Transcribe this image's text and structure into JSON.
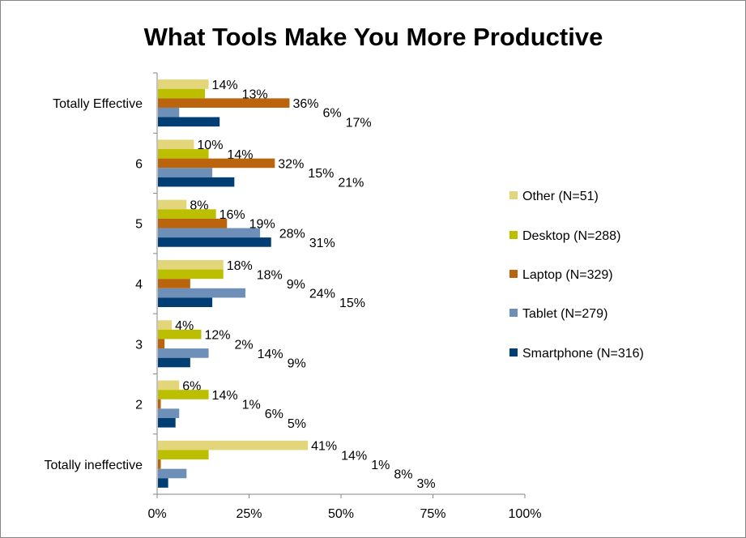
{
  "chart_data": {
    "type": "bar",
    "orientation": "horizontal",
    "title": "What Tools Make You More Productive",
    "categories": [
      "Totally Effective",
      "6",
      "5",
      "4",
      "3",
      "2",
      "Totally ineffective"
    ],
    "series": [
      {
        "name": "Other (N=51)",
        "color": "#E2D57A",
        "values": [
          14,
          10,
          8,
          18,
          4,
          6,
          41
        ]
      },
      {
        "name": "Desktop (N=288)",
        "color": "#BBBF00",
        "values": [
          13,
          14,
          16,
          18,
          12,
          14,
          14
        ]
      },
      {
        "name": "Laptop (N=329)",
        "color": "#BB640E",
        "values": [
          36,
          32,
          19,
          9,
          2,
          1,
          1
        ]
      },
      {
        "name": "Tablet (N=279)",
        "color": "#6D8FB8",
        "values": [
          6,
          15,
          28,
          24,
          14,
          6,
          8
        ]
      },
      {
        "name": "Smartphone (N=316)",
        "color": "#013E73",
        "values": [
          17,
          21,
          31,
          15,
          9,
          5,
          3
        ]
      }
    ],
    "xlim": [
      0,
      100
    ],
    "x_ticks": [
      "0%",
      "25%",
      "50%",
      "75%",
      "100%"
    ],
    "value_format": "percent",
    "legend_position": "right",
    "grid": false
  }
}
